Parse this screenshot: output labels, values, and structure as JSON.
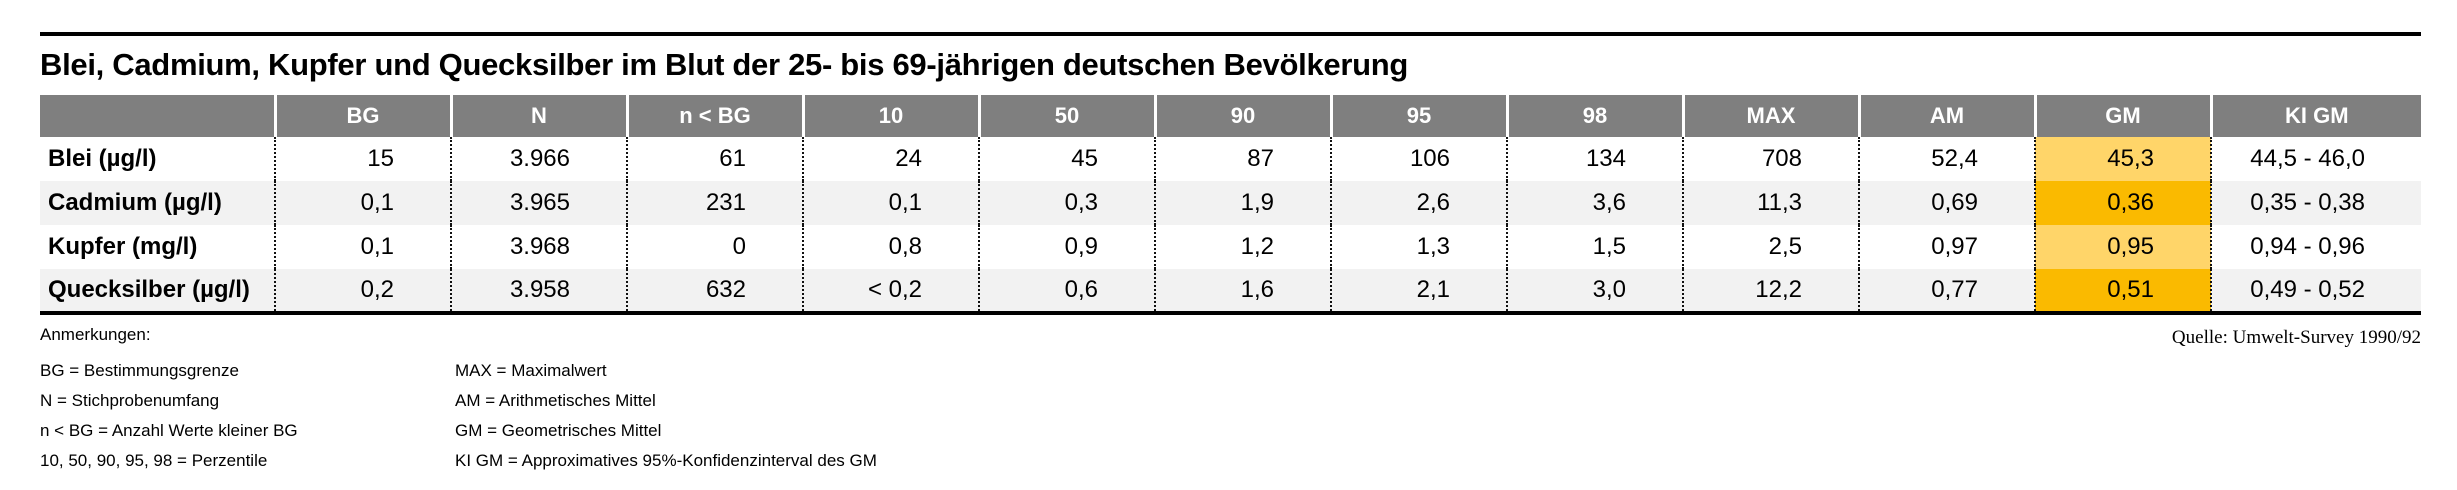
{
  "title": "Blei, Cadmium, Kupfer und Quecksilber im Blut der 25- bis 69-jährigen deutschen Bevölkerung",
  "source": "Quelle: Umwelt-Survey 1990/92",
  "colors": {
    "header_bg": "#7f7f7f",
    "row_stripe": "#f2f2f2",
    "gm_highlight_light": "#ffd569",
    "gm_highlight_dark": "#faba00",
    "rule": "#000000"
  },
  "chart_data": {
    "type": "table",
    "title": "Blei, Cadmium, Kupfer und Quecksilber im Blut der 25- bis 69-jährigen deutschen Bevölkerung",
    "columns": [
      "",
      "BG",
      "N",
      "n < BG",
      "10",
      "50",
      "90",
      "95",
      "98",
      "MAX",
      "AM",
      "GM",
      "KI GM"
    ],
    "highlight_column": "GM",
    "rows": [
      {
        "label": "Blei (µg/l)",
        "values": [
          "15",
          "3.966",
          "61",
          "24",
          "45",
          "87",
          "106",
          "134",
          "708",
          "52,4",
          "45,3",
          "44,5 - 46,0"
        ]
      },
      {
        "label": "Cadmium (µg/l)",
        "values": [
          "0,1",
          "3.965",
          "231",
          "0,1",
          "0,3",
          "1,9",
          "2,6",
          "3,6",
          "11,3",
          "0,69",
          "0,36",
          "0,35 - 0,38"
        ]
      },
      {
        "label": "Kupfer (mg/l)",
        "values": [
          "0,1",
          "3.968",
          "0",
          "0,8",
          "0,9",
          "1,2",
          "1,3",
          "1,5",
          "2,5",
          "0,97",
          "0,95",
          "0,94 - 0,96"
        ]
      },
      {
        "label": "Quecksilber (µg/l)",
        "values": [
          "0,2",
          "3.958",
          "632",
          "< 0,2",
          "0,6",
          "1,6",
          "2,1",
          "3,0",
          "12,2",
          "0,77",
          "0,51",
          "0,49 - 0,52"
        ]
      }
    ]
  },
  "notes": {
    "heading": "Anmerkungen:",
    "left": [
      "BG = Bestimmungsgrenze",
      "N = Stichprobenumfang",
      "n < BG = Anzahl Werte kleiner BG",
      "10, 50, 90, 95, 98 = Perzentile"
    ],
    "right": [
      "MAX = Maximalwert",
      "AM = Arithmetisches Mittel",
      "GM = Geometrisches Mittel",
      "KI GM = Approximatives 95%-Konfidenzinterval des GM"
    ]
  }
}
